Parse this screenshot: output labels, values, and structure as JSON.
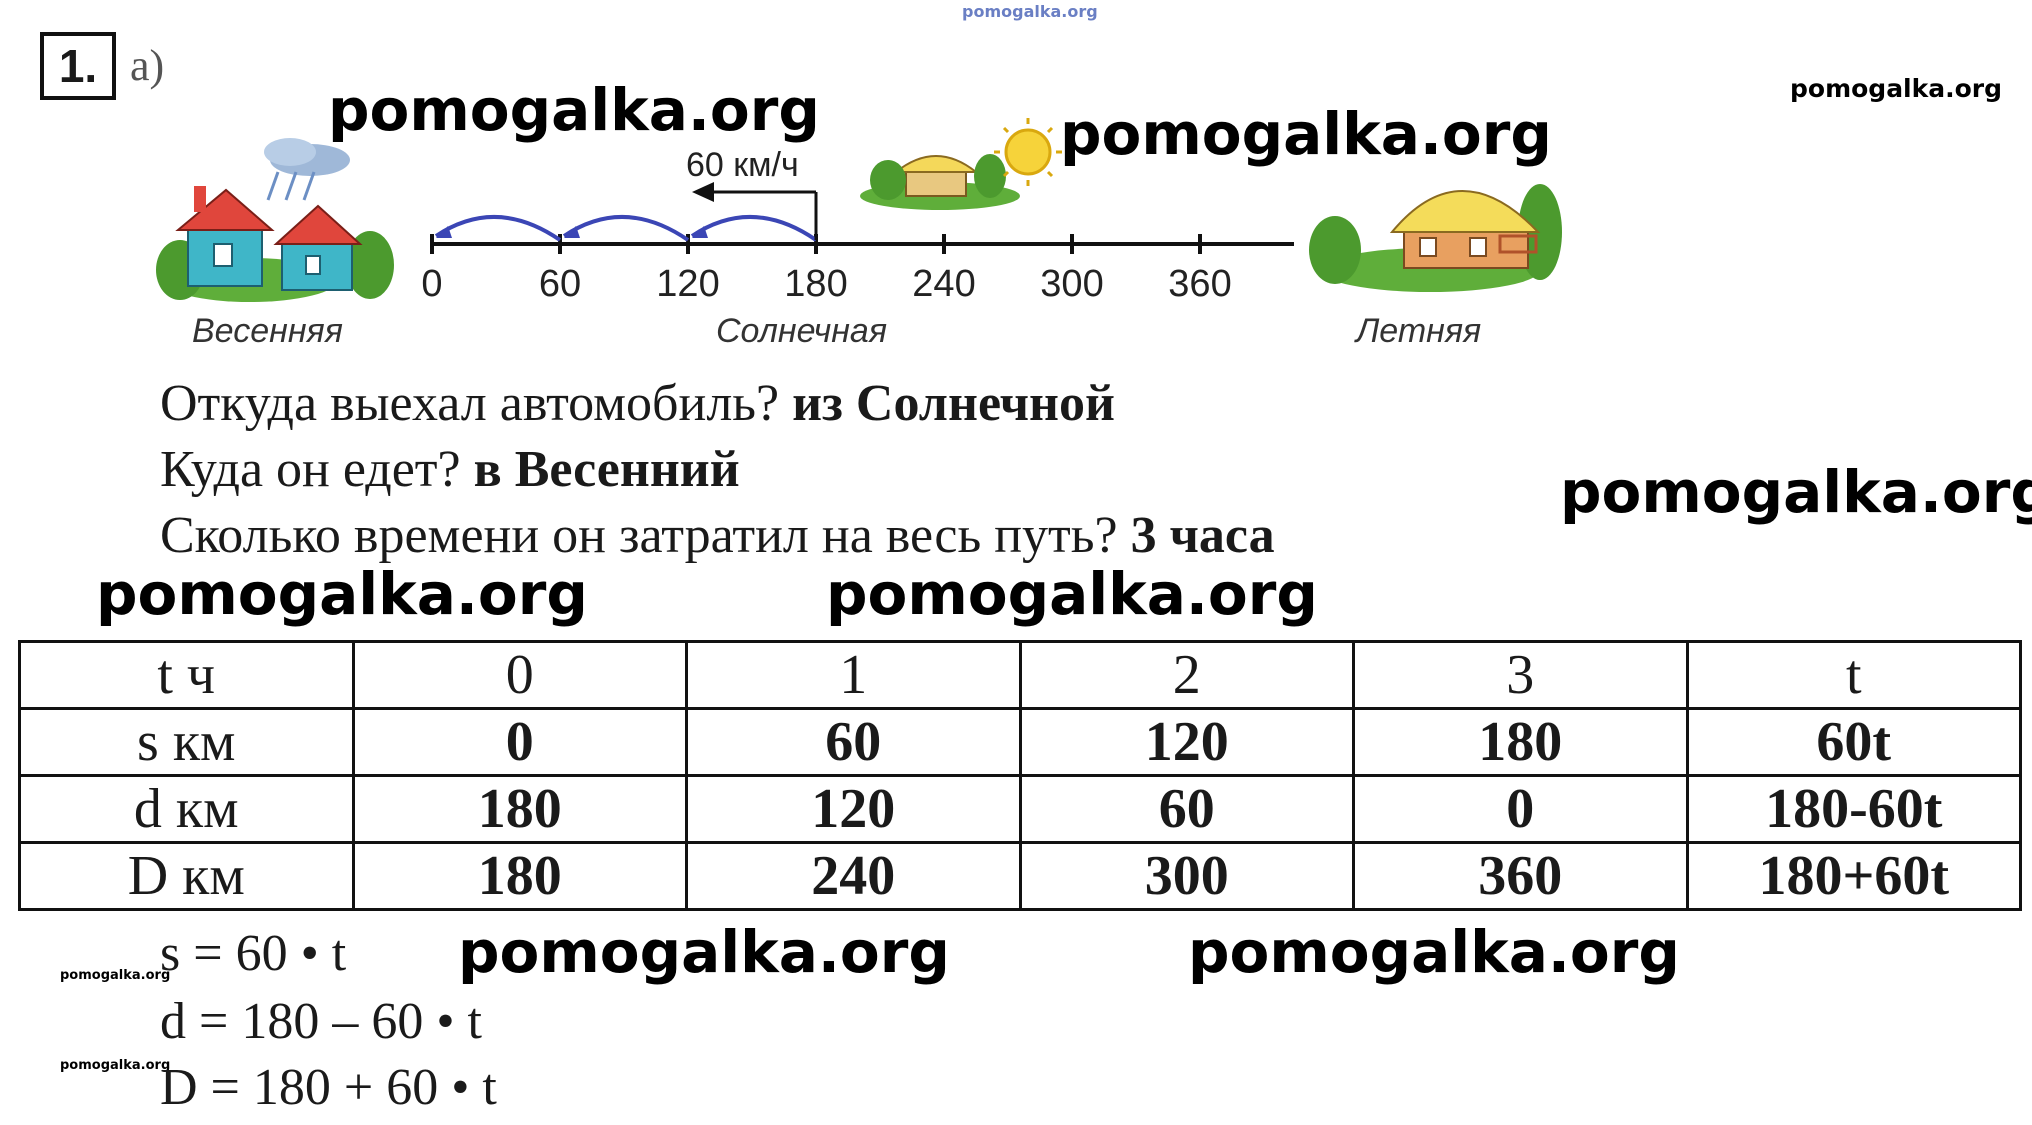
{
  "watermark": "pomogalka.org",
  "task": {
    "number": "1.",
    "letter": "а)"
  },
  "diagram": {
    "speed_label": "60 км/ч",
    "ticks": [
      "0",
      "60",
      "120",
      "180",
      "240",
      "300",
      "360"
    ],
    "towns": {
      "left": "Весенняя",
      "middle": "Солнечная",
      "right": "Летняя"
    }
  },
  "questions": [
    {
      "question": "Откуда выехал автомобиль?",
      "answer": "из Солнечной"
    },
    {
      "question": "Куда он едет?",
      "answer": "в Весенний"
    },
    {
      "question": "Сколько времени он затратил на весь путь?",
      "answer": "3 часа"
    }
  ],
  "table": {
    "rows": [
      {
        "label": "t ч",
        "cells": [
          "0",
          "1",
          "2",
          "3",
          "t"
        ]
      },
      {
        "label": "s км",
        "cells": [
          "0",
          "60",
          "120",
          "180",
          "60t"
        ]
      },
      {
        "label": "d км",
        "cells": [
          "180",
          "120",
          "60",
          "0",
          "180-60t"
        ]
      },
      {
        "label": "D км",
        "cells": [
          "180",
          "240",
          "300",
          "360",
          "180+60t"
        ]
      }
    ]
  },
  "formulas": [
    "s = 60 • t",
    "d = 180 – 60 • t",
    "D = 180 + 60 • t"
  ],
  "colors": {
    "arc": "#3b46b5",
    "roof": "#e0463c",
    "house": "#3fb6c8",
    "sun": "#f6d33a",
    "grass": "#5fae3a"
  }
}
